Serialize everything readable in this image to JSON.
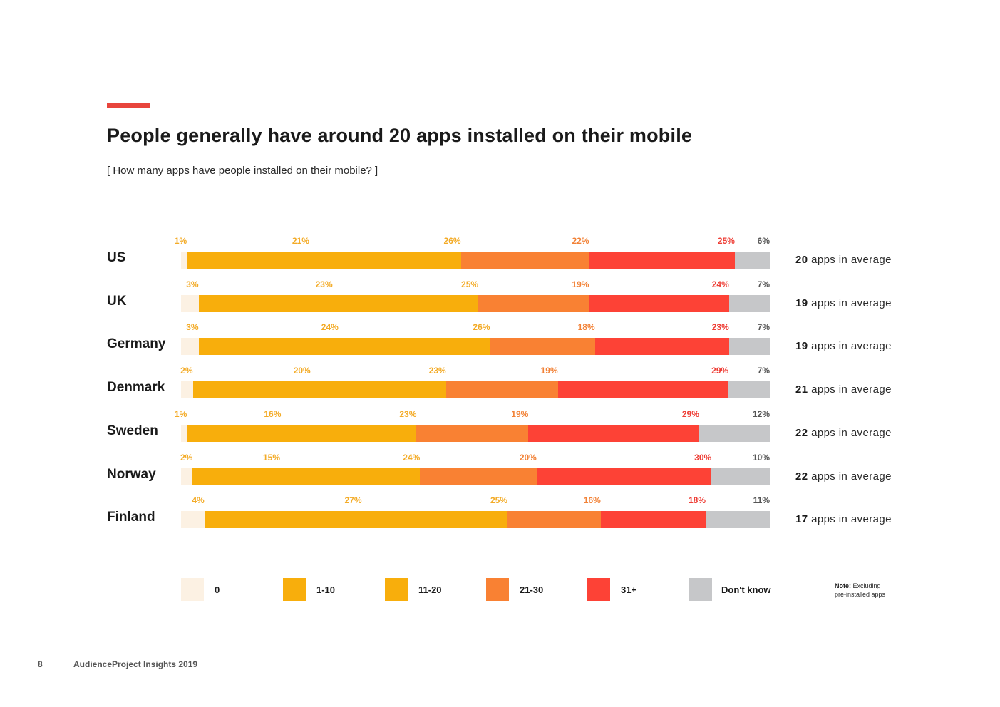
{
  "header": {
    "title": "People generally have around 20 apps installed on their mobile",
    "subtitle": "[ How many apps have people installed on their mobile? ]"
  },
  "colors": {
    "accent": "#e8453c",
    "zero": "#fcf1e3",
    "one_to_ten": "#f8ae0c",
    "eleven_to_twenty": "#f8ae0c",
    "twentyone_to_thirty": "#f98133",
    "thirtyone_plus": "#fd4236",
    "dont_know": "#c6c7c9",
    "label_yellow": "#f3ab27",
    "label_orange": "#f28237",
    "label_red": "#ee3f37",
    "label_grey": "#555555"
  },
  "chart_data": {
    "type": "bar",
    "orientation": "horizontal-stacked-100",
    "title": "People generally have around 20 apps installed on their mobile",
    "subtitle": "[ How many apps have people installed on their mobile? ]",
    "unit": "%",
    "series_names": [
      "0",
      "1-10",
      "11-20",
      "21-30",
      "31+",
      "Don't know"
    ],
    "categories": [
      "US",
      "UK",
      "Germany",
      "Denmark",
      "Sweden",
      "Norway",
      "Finland"
    ],
    "series": [
      {
        "name": "0",
        "values": [
          1,
          3,
          3,
          2,
          1,
          2,
          4
        ]
      },
      {
        "name": "1-10",
        "values": [
          21,
          23,
          24,
          20,
          16,
          15,
          27
        ]
      },
      {
        "name": "11-20",
        "values": [
          26,
          25,
          26,
          23,
          23,
          24,
          25
        ]
      },
      {
        "name": "21-30",
        "values": [
          22,
          19,
          18,
          19,
          19,
          20,
          16
        ]
      },
      {
        "name": "31+",
        "values": [
          25,
          24,
          23,
          29,
          29,
          30,
          18
        ]
      },
      {
        "name": "Don't know",
        "values": [
          6,
          7,
          7,
          7,
          12,
          10,
          11
        ]
      }
    ],
    "averages": [
      {
        "value": "20",
        "suffix": "apps in average"
      },
      {
        "value": "19",
        "suffix": "apps in average"
      },
      {
        "value": "19",
        "suffix": "apps in average"
      },
      {
        "value": "21",
        "suffix": "apps in average"
      },
      {
        "value": "22",
        "suffix": "apps in average"
      },
      {
        "value": "22",
        "suffix": "apps in average"
      },
      {
        "value": "17",
        "suffix": "apps in average"
      }
    ],
    "legend": [
      "0",
      "1-10",
      "11-20",
      "21-30",
      "31+",
      "Don't know"
    ],
    "legend_position": "bottom"
  },
  "note": {
    "label": "Note:",
    "text_line1": "Excluding",
    "text_line2": "pre-installed apps"
  },
  "footer": {
    "page_number": "8",
    "text": "AudienceProject Insights 2019"
  }
}
